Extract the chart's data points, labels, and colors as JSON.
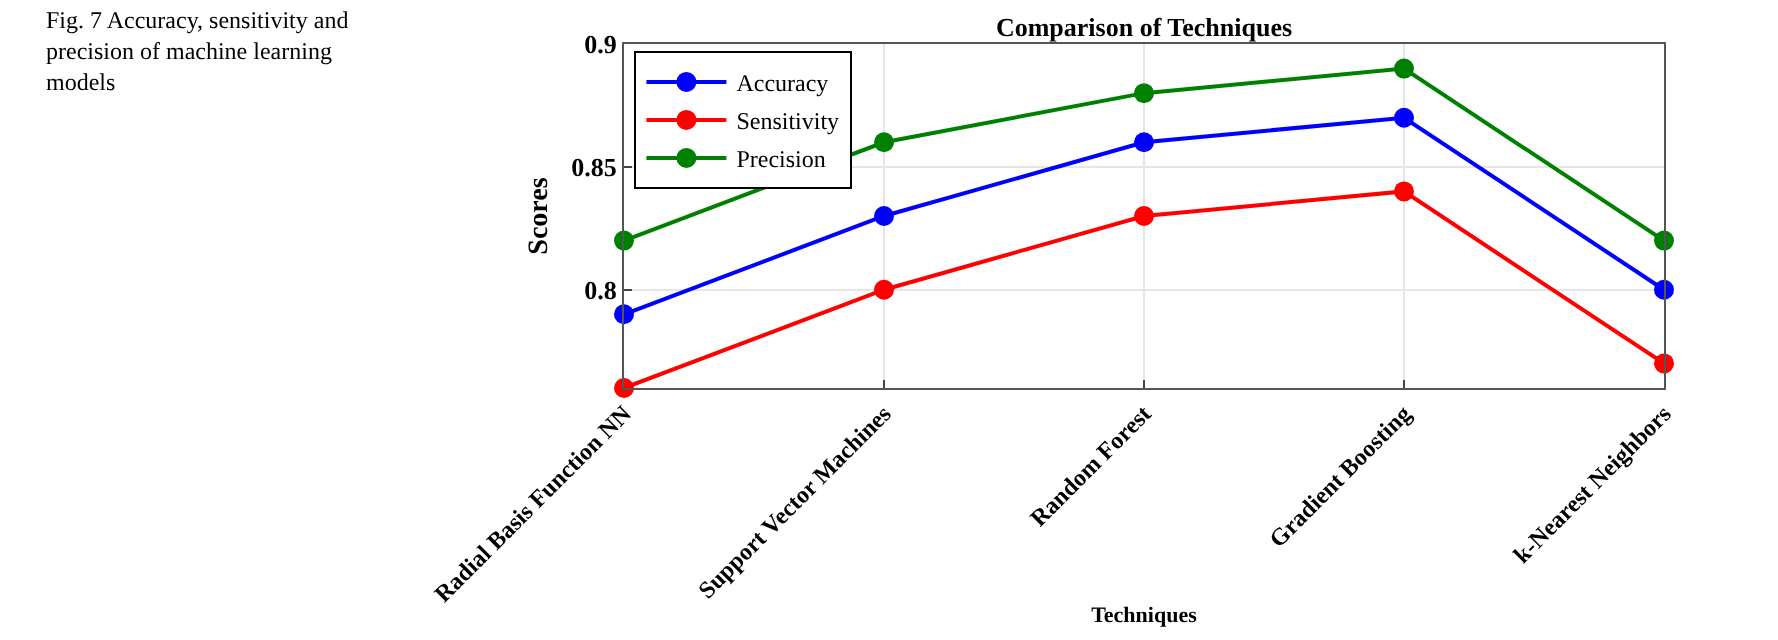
{
  "chart_data": {
    "type": "line",
    "title": "Comparison of Techniques",
    "xlabel": "Techniques",
    "ylabel": "Scores",
    "annotations": [
      "Fig. 7 Accuracy, sensitivity and precision of machine learning models"
    ],
    "categories": [
      "Radial Basis Function NN",
      "Support Vector Machines",
      "Random Forest",
      "Gradient Boosting",
      "k-Nearest Neighbors"
    ],
    "series": [
      {
        "name": "Accuracy",
        "color": "#0000ff",
        "values": [
          0.79,
          0.83,
          0.86,
          0.87,
          0.8
        ]
      },
      {
        "name": "Sensitivity",
        "color": "#ff0000",
        "values": [
          0.76,
          0.8,
          0.83,
          0.84,
          0.77
        ]
      },
      {
        "name": "Precision",
        "color": "#008000",
        "values": [
          0.82,
          0.86,
          0.88,
          0.89,
          0.82
        ]
      }
    ],
    "ylim": [
      0.76,
      0.9
    ],
    "yticks": [
      0.8,
      0.85,
      0.9
    ],
    "grid": true,
    "legend": "top left",
    "marker": "circle",
    "line_style": "solid"
  }
}
